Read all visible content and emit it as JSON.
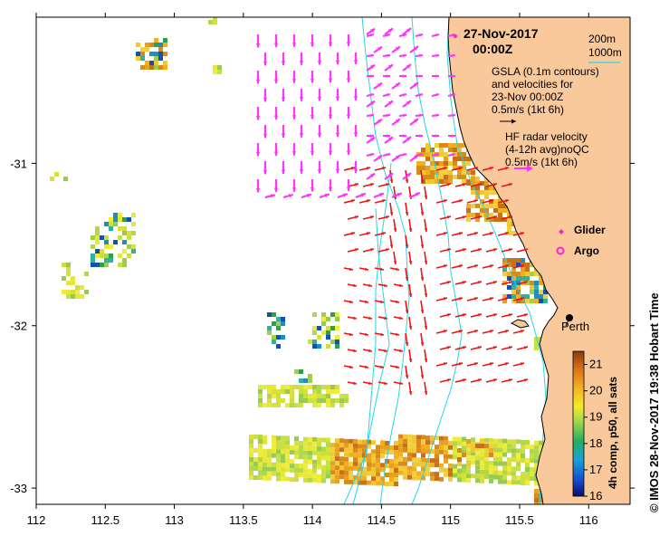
{
  "colors": {
    "land": "#f9c89b",
    "contour": "#26d4e6",
    "hf_arrow": "#ff33ff",
    "gsla_arrow": "#ee1111",
    "glider": "#ff22cc",
    "argo": "#ff22cc"
  },
  "map": {
    "lon_range": [
      112,
      116.3
    ],
    "lat_range": [
      -33.1,
      -30.1
    ],
    "x_ticks": [
      "112",
      "112.5",
      "113",
      "113.5",
      "114",
      "114.5",
      "115",
      "115.5",
      "116"
    ],
    "x_tick_values": [
      112,
      112.5,
      113,
      113.5,
      114,
      114.5,
      115,
      115.5,
      116
    ],
    "y_ticks": [
      "-31",
      "-32",
      "-33"
    ],
    "y_tick_values": [
      -31,
      -32,
      -33
    ]
  },
  "header": {
    "date": "27-Nov-2017",
    "time": "00:00Z"
  },
  "legend": {
    "contour_200": "200m",
    "contour_1000": "1000m",
    "gsla_line1": "GSLA (0.1m contours)",
    "gsla_line2": "and velocities for",
    "gsla_line3": "23-Nov 00:00Z",
    "gsla_scale": "0.5m/s (1kt 6h)",
    "hf_line1": "HF radar velocity",
    "hf_line2": "(4-12h avg)noQC",
    "hf_scale": "0.5m/s (1kt 6h)",
    "glider_label": "Glider",
    "argo_label": "Argo"
  },
  "city": {
    "name": "Perth",
    "lon": 115.86,
    "lat": -31.95
  },
  "colorbar": {
    "label": "4h comp, p50, all sats",
    "ticks": [
      "21",
      "20",
      "19",
      "18",
      "17",
      "16"
    ],
    "tick_values": [
      21,
      20,
      19,
      18,
      17,
      16
    ],
    "range": [
      16,
      21.5
    ]
  },
  "credit": "© IMOS 28-Nov-2017 19:38 Hobart Time"
}
